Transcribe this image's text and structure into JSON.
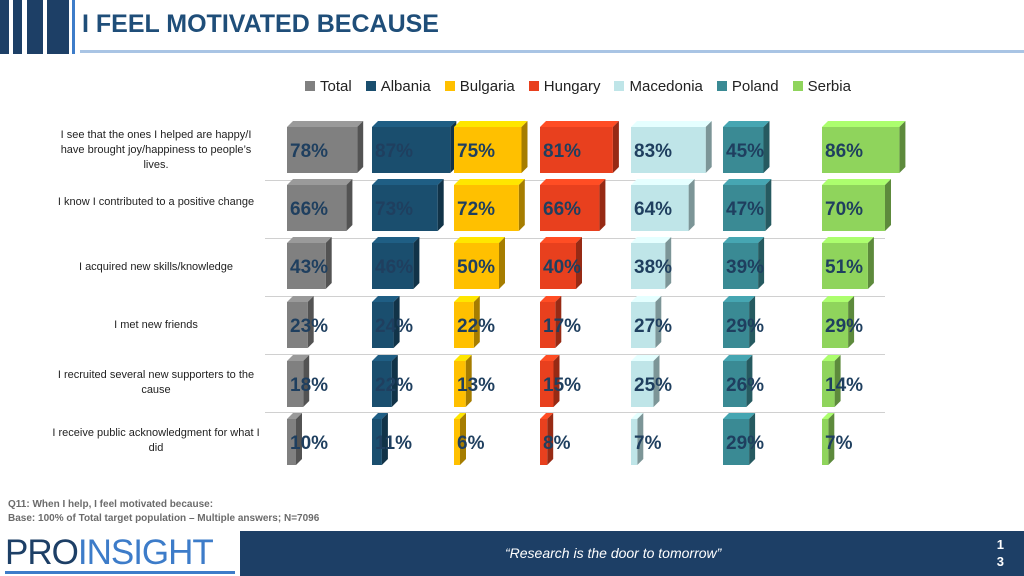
{
  "title": "I FEEL MOTIVATED BECAUSE",
  "legend": [
    {
      "label": "Total",
      "color": "#808080"
    },
    {
      "label": "Albania",
      "color": "#1a4e6e"
    },
    {
      "label": "Bulgaria",
      "color": "#ffc000"
    },
    {
      "label": "Hungary",
      "color": "#e8401e"
    },
    {
      "label": "Macedonia",
      "color": "#bfe5e8"
    },
    {
      "label": "Poland",
      "color": "#3a8a94"
    },
    {
      "label": "Serbia",
      "color": "#8fd45c"
    }
  ],
  "chart_data": {
    "type": "bar",
    "categories": [
      "I see that the ones I helped are happy/I have brought joy/happiness to people’s lives.",
      "I know I contributed to a positive change",
      "I acquired new skills/knowledge",
      "I met new friends",
      "I recruited several new supporters to the cause",
      "I receive public acknowledgment for what I did"
    ],
    "series": [
      {
        "name": "Total",
        "values": [
          78,
          66,
          43,
          23,
          18,
          10
        ]
      },
      {
        "name": "Albania",
        "values": [
          87,
          73,
          46,
          24,
          22,
          11
        ]
      },
      {
        "name": "Bulgaria",
        "values": [
          75,
          72,
          50,
          22,
          13,
          6
        ]
      },
      {
        "name": "Hungary",
        "values": [
          81,
          66,
          40,
          17,
          15,
          8
        ]
      },
      {
        "name": "Macedonia",
        "values": [
          83,
          64,
          38,
          27,
          25,
          7
        ]
      },
      {
        "name": "Poland",
        "values": [
          45,
          47,
          39,
          29,
          26,
          29
        ]
      },
      {
        "name": "Serbia",
        "values": [
          86,
          70,
          51,
          29,
          14,
          7
        ]
      }
    ],
    "value_suffix": "%"
  },
  "footnote": {
    "question": "Q11: When I help, I feel motivated because:",
    "base": "Base: 100% of Total target population – Multiple answers; N=7096"
  },
  "footer": {
    "logo_part1": "PRO",
    "logo_part2": "INSIGHT",
    "tagline": "“Research is the door to tomorrow”",
    "page_line1": "1",
    "page_line2": "3"
  }
}
